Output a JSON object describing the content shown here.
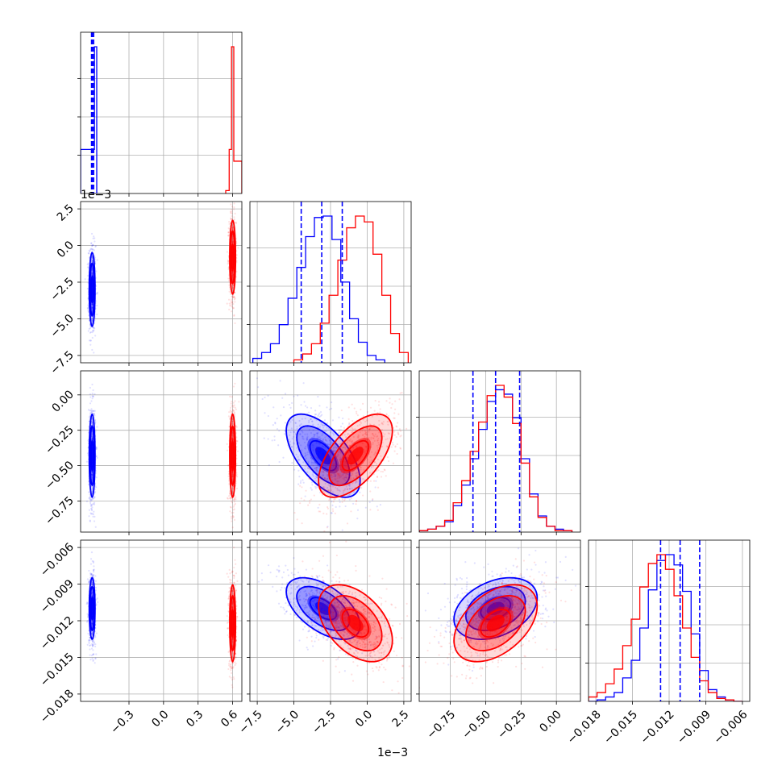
{
  "chart_data": {
    "type": "corner",
    "grid": true,
    "colors": {
      "series_a": "#0000ff",
      "series_b": "#ff0000"
    },
    "parameters": [
      {
        "range": [
          -0.72,
          0.68
        ],
        "ticks": [
          -0.3,
          0.0,
          0.3,
          0.6
        ],
        "tick_labels": [
          "−0.3",
          "0.0",
          "0.3",
          "0.6"
        ],
        "offset_label": ""
      },
      {
        "range": [
          -0.008,
          0.003
        ],
        "ticks": [
          -0.0075,
          -0.005,
          -0.0025,
          0.0,
          0.0025
        ],
        "tick_labels": [
          "−7.5",
          "−5.0",
          "−2.5",
          "0.0",
          "2.5"
        ],
        "offset_label": "1e−3"
      },
      {
        "range": [
          -0.97,
          0.17
        ],
        "ticks": [
          -0.75,
          -0.5,
          -0.25,
          0.0
        ],
        "tick_labels": [
          "−0.75",
          "−0.50",
          "−0.25",
          "0.00"
        ],
        "offset_label": ""
      },
      {
        "range": [
          -0.0186,
          -0.0054
        ],
        "ticks": [
          -0.018,
          -0.015,
          -0.012,
          -0.009,
          -0.006
        ],
        "tick_labels": [
          "−0.018",
          "−0.015",
          "−0.012",
          "−0.009",
          "−0.006"
        ],
        "offset_label": ""
      }
    ],
    "series": [
      {
        "color_key": "series_a",
        "mean": [
          -0.62,
          -0.003,
          -0.43,
          -0.011
        ],
        "sd": [
          0.012,
          0.0012,
          0.14,
          0.0012
        ],
        "quantiles": [
          [
            -0.625,
            -0.618,
            -0.607
          ],
          [
            -0.0045,
            -0.0031,
            -0.0017
          ],
          [
            -0.59,
            -0.43,
            -0.26
          ],
          [
            -0.0127,
            -0.0111,
            -0.0095
          ]
        ],
        "corr": {
          "1-2": -0.6,
          "1-3": -0.55,
          "2-3": 0.35
        },
        "hist": [
          {
            "bins": [
              -0.72,
              -0.6,
              -0.58
            ],
            "counts": [
              0.3,
              1.0
            ]
          },
          {
            "bins": [
              -0.0078,
              -0.0072,
              -0.0066,
              -0.006,
              -0.0054,
              -0.0048,
              -0.0042,
              -0.0036,
              -0.003,
              -0.0024,
              -0.0018,
              -0.0012,
              -0.0006,
              0.0,
              0.0006,
              0.0012
            ],
            "counts": [
              0.03,
              0.07,
              0.13,
              0.26,
              0.44,
              0.65,
              0.86,
              0.99,
              1.0,
              0.84,
              0.55,
              0.3,
              0.14,
              0.05,
              0.02
            ]
          },
          {
            "bins": [
              -0.97,
              -0.91,
              -0.85,
              -0.79,
              -0.73,
              -0.67,
              -0.61,
              -0.55,
              -0.49,
              -0.43,
              -0.37,
              -0.31,
              -0.25,
              -0.19,
              -0.13,
              -0.07,
              -0.01,
              0.05,
              0.11
            ],
            "counts": [
              0.01,
              0.02,
              0.04,
              0.07,
              0.18,
              0.32,
              0.5,
              0.7,
              0.89,
              0.97,
              0.94,
              0.78,
              0.5,
              0.26,
              0.11,
              0.04,
              0.02,
              0.01
            ]
          },
          {
            "bins": [
              -0.0186,
              -0.0179,
              -0.0172,
              -0.0165,
              -0.0158,
              -0.0151,
              -0.0144,
              -0.0137,
              -0.013,
              -0.0123,
              -0.0116,
              -0.0109,
              -0.0102,
              -0.0095,
              -0.0088,
              -0.0081,
              -0.0074,
              -0.0067,
              -0.006
            ],
            "counts": [
              0.0,
              0.01,
              0.03,
              0.06,
              0.16,
              0.28,
              0.5,
              0.76,
              0.96,
              1.0,
              0.93,
              0.75,
              0.46,
              0.21,
              0.08,
              0.03,
              0.01,
              0.0
            ]
          }
        ]
      },
      {
        "color_key": "series_b",
        "mean": [
          0.6,
          -0.0008,
          -0.43,
          -0.0122
        ],
        "sd": [
          0.012,
          0.0012,
          0.14,
          0.0015
        ],
        "quantiles": [
          [
            0.59,
            0.6,
            0.61
          ],
          [
            -0.0022,
            -0.0008,
            0.0006
          ],
          [
            -0.58,
            -0.43,
            -0.27
          ],
          [
            -0.0138,
            -0.0122,
            -0.0106
          ]
        ],
        "corr": {
          "1-2": 0.6,
          "1-3": -0.45,
          "2-3": 0.45
        },
        "hist": [
          {
            "bins": [
              0.54,
              0.57,
              0.59,
              0.61,
              0.68
            ],
            "counts": [
              0.02,
              0.3,
              1.0,
              0.22
            ]
          },
          {
            "bins": [
              -0.005,
              -0.0044,
              -0.0038,
              -0.0032,
              -0.0026,
              -0.002,
              -0.0014,
              -0.0008,
              -0.0002,
              0.0004,
              0.001,
              0.0016,
              0.0022,
              0.0028
            ],
            "counts": [
              0.02,
              0.06,
              0.13,
              0.27,
              0.46,
              0.7,
              0.92,
              1.0,
              0.96,
              0.74,
              0.46,
              0.2,
              0.07
            ]
          },
          {
            "bins": [
              -0.97,
              -0.91,
              -0.85,
              -0.79,
              -0.73,
              -0.67,
              -0.61,
              -0.55,
              -0.49,
              -0.43,
              -0.37,
              -0.31,
              -0.25,
              -0.19,
              -0.13,
              -0.07,
              -0.01,
              0.05,
              0.11
            ],
            "counts": [
              0.01,
              0.02,
              0.04,
              0.08,
              0.2,
              0.35,
              0.55,
              0.75,
              0.93,
              1.0,
              0.92,
              0.74,
              0.47,
              0.24,
              0.1,
              0.04,
              0.01,
              0.01
            ]
          },
          {
            "bins": [
              -0.0186,
              -0.0179,
              -0.0172,
              -0.0165,
              -0.0158,
              -0.0151,
              -0.0144,
              -0.0137,
              -0.013,
              -0.0123,
              -0.0116,
              -0.0109,
              -0.0102,
              -0.0095,
              -0.0088,
              -0.0081,
              -0.0074,
              -0.0067,
              -0.006
            ],
            "counts": [
              0.03,
              0.06,
              0.12,
              0.22,
              0.38,
              0.56,
              0.78,
              0.94,
              1.0,
              0.9,
              0.72,
              0.5,
              0.3,
              0.14,
              0.06,
              0.02,
              0.01,
              0.0
            ]
          }
        ]
      }
    ]
  }
}
